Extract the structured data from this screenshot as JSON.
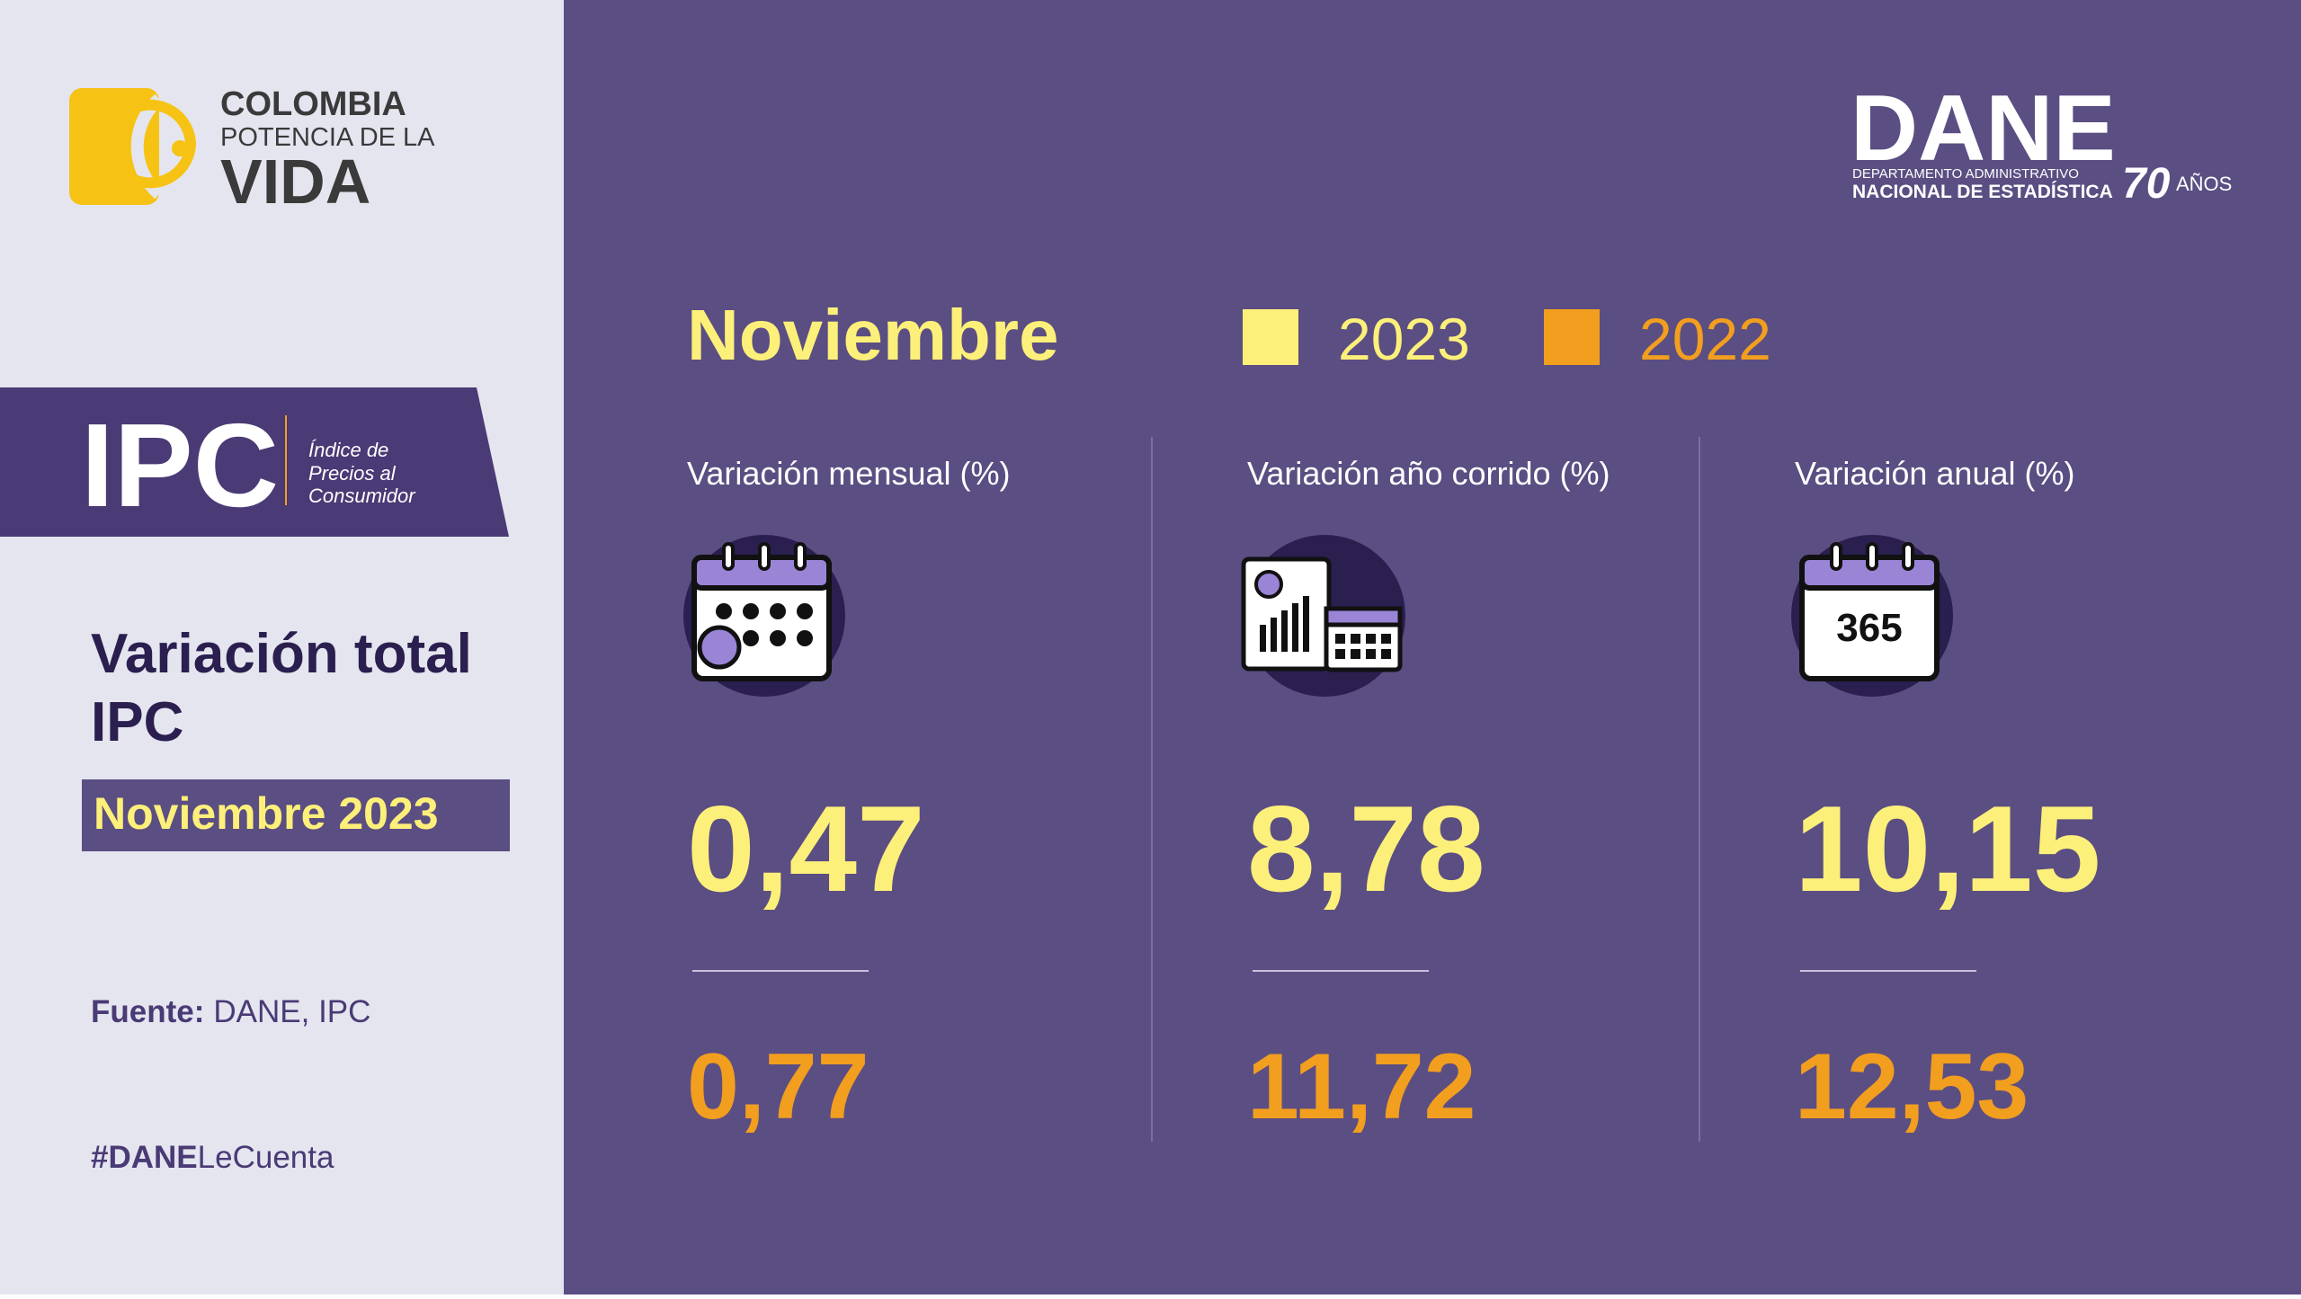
{
  "logo_colombia": {
    "line1": "COLOMBIA",
    "line2": "POTENCIA DE LA",
    "line3": "VIDA"
  },
  "logo_dane": {
    "name": "DANE",
    "line1": "DEPARTAMENTO ADMINISTRATIVO",
    "line2": "NACIONAL DE ESTADÍSTICA",
    "anniversary": "70",
    "anniversary_text": "AÑOS"
  },
  "ipc_badge": {
    "acronym": "IPC",
    "line1": "Índice de",
    "line2": "Precios al",
    "line3": "Consumidor"
  },
  "title": {
    "line1": "Variación total",
    "line2": "IPC"
  },
  "period": "Noviembre 2023",
  "source": {
    "label": "Fuente:",
    "text": "DANE, IPC"
  },
  "hashtag": {
    "bold": "#DANE",
    "rest": "LeCuenta"
  },
  "month": "Noviembre",
  "legend": [
    {
      "name": "2023",
      "color": "#fdf07a"
    },
    {
      "name": "2022",
      "color": "#f29e1f"
    }
  ],
  "panels": [
    {
      "label": "Variación mensual (%)",
      "value_2023": "0,47",
      "value_2022": "0,77"
    },
    {
      "label": "Variación año corrido (%)",
      "value_2023": "8,78",
      "value_2022": "11,72"
    },
    {
      "label": "Variación anual (%)",
      "value_2023": "10,15",
      "value_2022": "12,53",
      "icon_text": "365"
    }
  ]
}
